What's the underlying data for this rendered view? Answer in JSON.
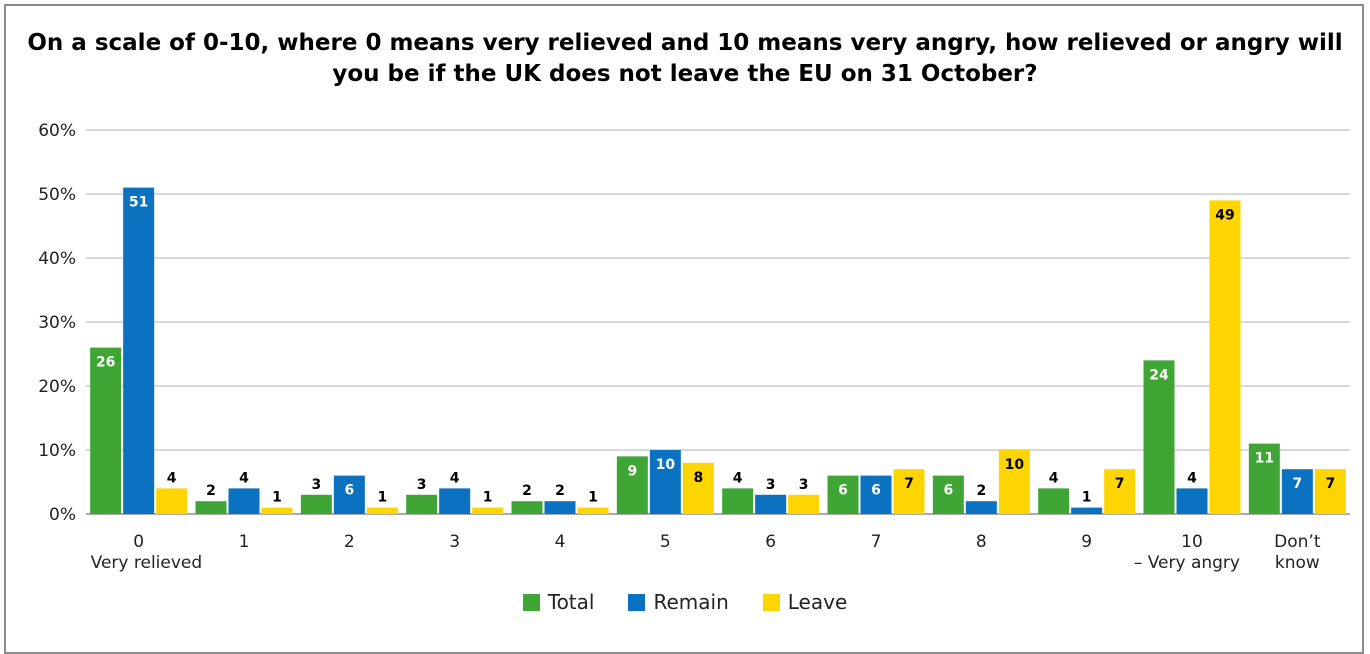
{
  "chart_data": {
    "type": "bar",
    "title": "On a scale of 0-10, where 0 means very relieved and 10 means very angry, how relieved or angry will you be if the UK does not leave the EU on 31 October?",
    "categories": [
      [
        "0",
        "Very relieved"
      ],
      [
        "1"
      ],
      [
        "2"
      ],
      [
        "3"
      ],
      [
        "4"
      ],
      [
        "5"
      ],
      [
        "6"
      ],
      [
        "7"
      ],
      [
        "8"
      ],
      [
        "9"
      ],
      [
        "10",
        "– Very angry"
      ],
      [
        "Don’t",
        "know"
      ]
    ],
    "series": [
      {
        "name": "Total",
        "color": "#3fa535",
        "label_color": "#ffffff",
        "values": [
          26,
          2,
          3,
          3,
          2,
          9,
          4,
          6,
          6,
          4,
          24,
          11
        ]
      },
      {
        "name": "Remain",
        "color": "#0a72c0",
        "label_color": "#ffffff",
        "values": [
          51,
          4,
          6,
          4,
          2,
          10,
          3,
          6,
          2,
          1,
          4,
          7
        ]
      },
      {
        "name": "Leave",
        "color": "#ffd500",
        "label_color": "#000000",
        "values": [
          4,
          1,
          1,
          1,
          1,
          8,
          3,
          7,
          10,
          7,
          49,
          7
        ]
      }
    ],
    "y_ticks": [
      "0%",
      "10%",
      "20%",
      "30%",
      "40%",
      "50%",
      "60%"
    ],
    "ylim": [
      0,
      60
    ],
    "grid": true,
    "legend_position": "bottom"
  }
}
